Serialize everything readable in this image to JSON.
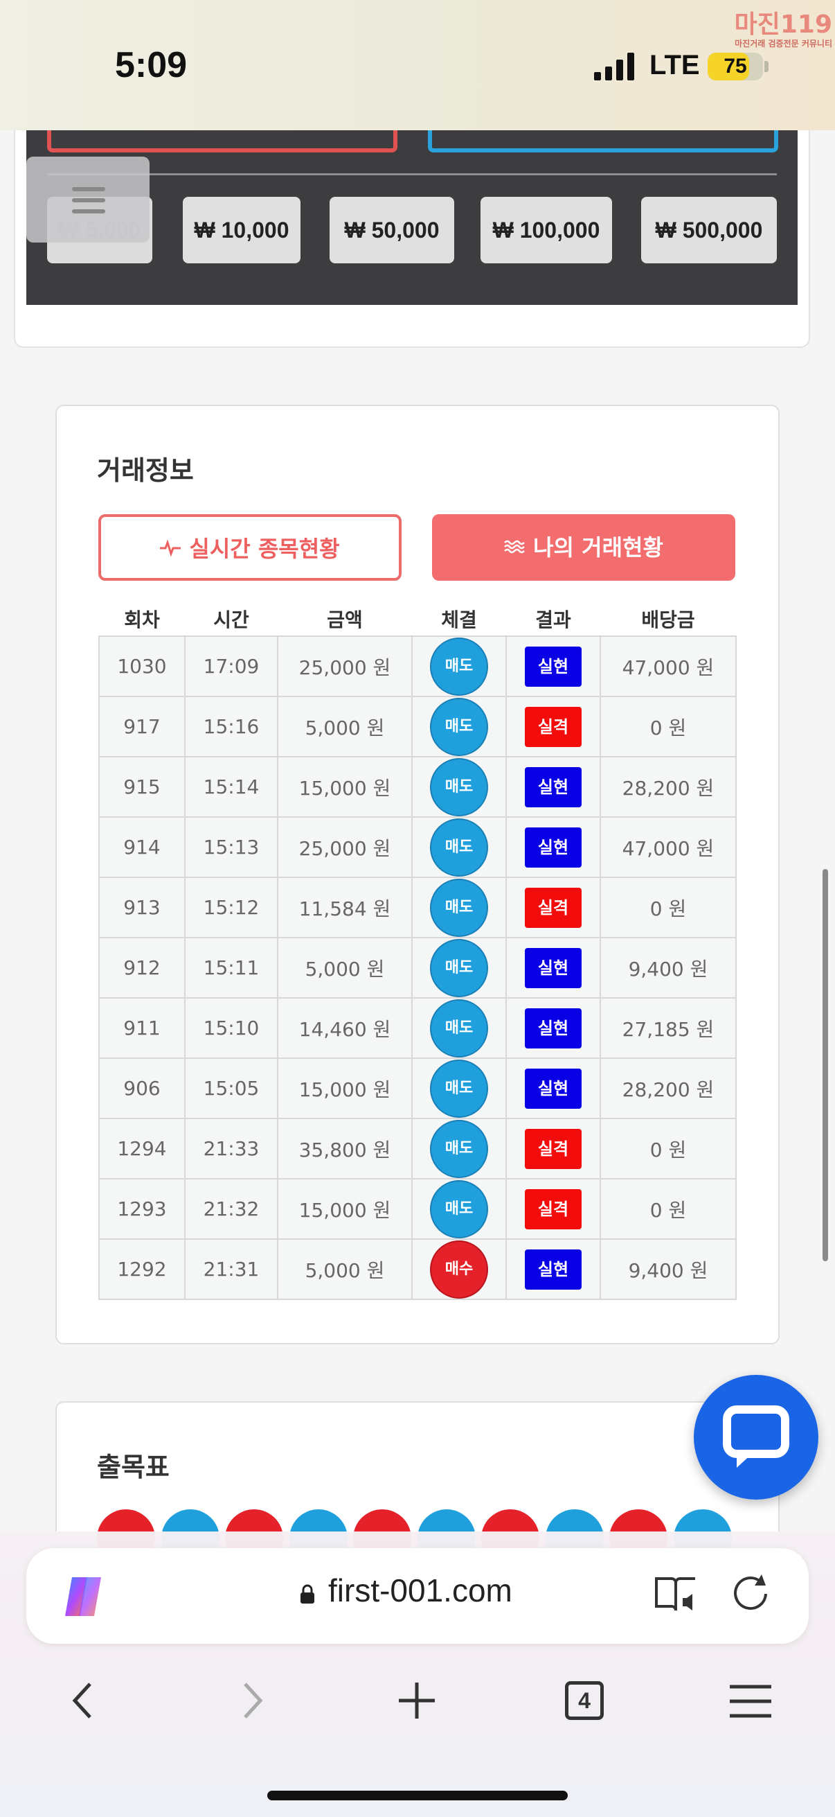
{
  "status_bar": {
    "time": "5:09",
    "network": "LTE",
    "battery": "75",
    "battery_level": 0.75,
    "watermark_title": "마진119",
    "watermark_subtitle": "마진거래 검증전문 커뮤니티"
  },
  "amount_chips": [
    "₩ 5,000",
    "₩ 10,000",
    "₩ 50,000",
    "₩ 100,000",
    "₩ 500,000"
  ],
  "trade_info": {
    "title": "거래정보",
    "tabs": {
      "realtime": "실시간 종목현황",
      "mine": "나의 거래현황"
    },
    "columns": [
      "회차",
      "시간",
      "금액",
      "체결",
      "결과",
      "배당금"
    ],
    "rows": [
      {
        "round": "1030",
        "time": "17:09",
        "amount": "25,000 원",
        "side": "매도",
        "result": "실현",
        "payout": "47,000 원"
      },
      {
        "round": "917",
        "time": "15:16",
        "amount": "5,000 원",
        "side": "매도",
        "result": "실격",
        "payout": "0 원"
      },
      {
        "round": "915",
        "time": "15:14",
        "amount": "15,000 원",
        "side": "매도",
        "result": "실현",
        "payout": "28,200 원"
      },
      {
        "round": "914",
        "time": "15:13",
        "amount": "25,000 원",
        "side": "매도",
        "result": "실현",
        "payout": "47,000 원"
      },
      {
        "round": "913",
        "time": "15:12",
        "amount": "11,584 원",
        "side": "매도",
        "result": "실격",
        "payout": "0 원"
      },
      {
        "round": "912",
        "time": "15:11",
        "amount": "5,000 원",
        "side": "매도",
        "result": "실현",
        "payout": "9,400 원"
      },
      {
        "round": "911",
        "time": "15:10",
        "amount": "14,460 원",
        "side": "매도",
        "result": "실현",
        "payout": "27,185 원"
      },
      {
        "round": "906",
        "time": "15:05",
        "amount": "15,000 원",
        "side": "매도",
        "result": "실현",
        "payout": "28,200 원"
      },
      {
        "round": "1294",
        "time": "21:33",
        "amount": "35,800 원",
        "side": "매도",
        "result": "실격",
        "payout": "0 원"
      },
      {
        "round": "1293",
        "time": "21:32",
        "amount": "15,000 원",
        "side": "매도",
        "result": "실격",
        "payout": "0 원"
      },
      {
        "round": "1292",
        "time": "21:31",
        "amount": "5,000 원",
        "side": "매수",
        "result": "실현",
        "payout": "9,400 원"
      }
    ]
  },
  "results_chart": {
    "title": "출목표",
    "balls": [
      "red",
      "blue",
      "red",
      "blue",
      "red",
      "blue",
      "red",
      "blue",
      "red",
      "blue"
    ]
  },
  "browser": {
    "url": "first-001.com",
    "tab_count": "4"
  },
  "colors": {
    "sell": "#1fa0dc",
    "buy": "#e5222a",
    "hit": "#0a00e6",
    "miss": "#f20c0c",
    "accent": "#f36c6e",
    "chat": "#1a64e6"
  }
}
